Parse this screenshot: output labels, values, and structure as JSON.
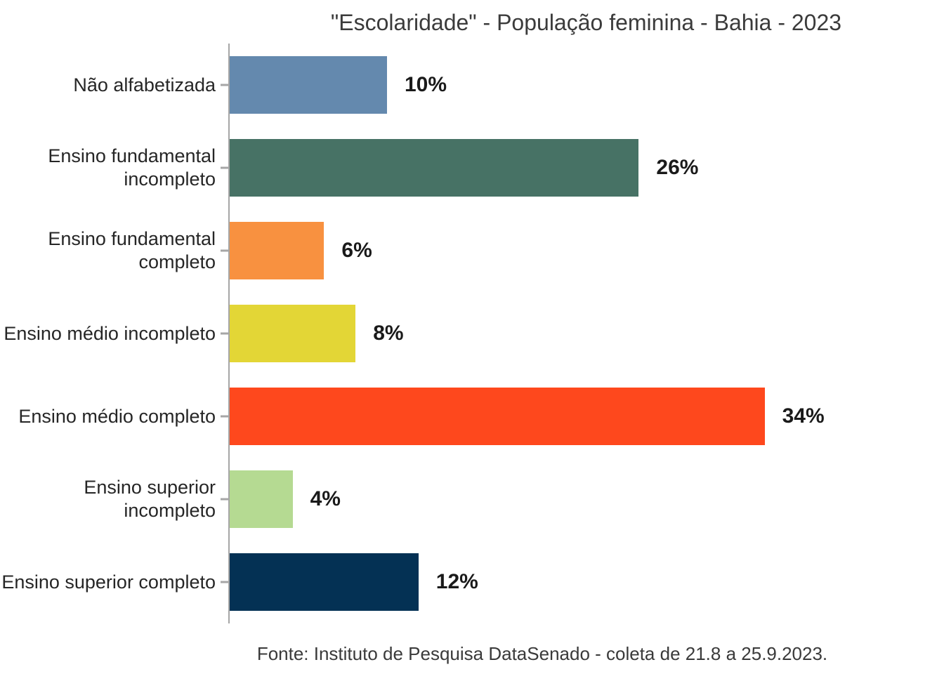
{
  "chart_data": {
    "type": "bar",
    "orientation": "horizontal",
    "title": "\"Escolaridade\" - População feminina - Bahia - 2023",
    "categories": [
      "Não alfabetizada",
      "Ensino fundamental incompleto",
      "Ensino fundamental completo",
      "Ensino médio incompleto",
      "Ensino médio completo",
      "Ensino superior incompleto",
      "Ensino superior completo"
    ],
    "values": [
      10,
      26,
      6,
      8,
      34,
      4,
      12
    ],
    "value_labels": [
      "10%",
      "26%",
      "6%",
      "8%",
      "34%",
      "4%",
      "12%"
    ],
    "bar_colors": [
      "#6489ae",
      "#477265",
      "#f89140",
      "#e3d636",
      "#fe481d",
      "#b5da92",
      "#043154"
    ],
    "xlabel": "",
    "ylabel": "",
    "xlim": [
      0,
      45
    ],
    "grid": false,
    "legend": false,
    "data_labels": true,
    "footer": "Fonte: Instituto de Pesquisa DataSenado - coleta de 21.8 a 25.9.2023."
  },
  "colors": {
    "background": "#ffffff",
    "axis_line": "#a6a6a6",
    "title_text": "#3b3b3b",
    "category_text": "#262626",
    "value_text": "#1a1a1a",
    "footer_text": "#3a3a3a"
  }
}
